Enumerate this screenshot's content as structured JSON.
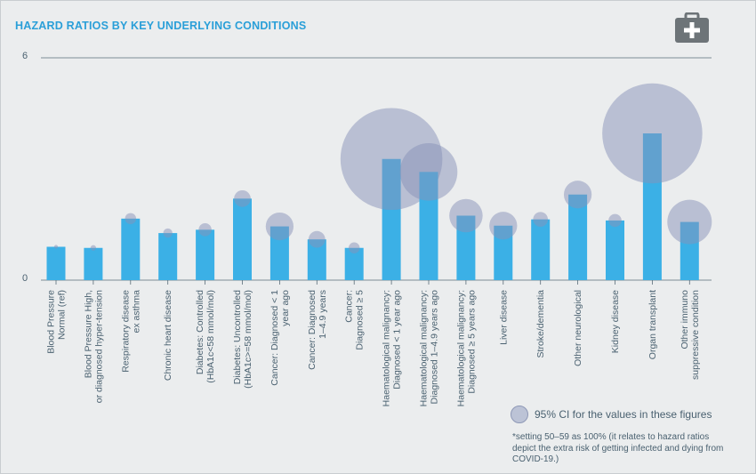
{
  "title": "HAZARD RATIOS BY KEY UNDERLYING CONDITIONS",
  "icon": "medical-kit-icon",
  "colors": {
    "title": "#2a9fd8",
    "bar": "#3bb0e6",
    "ci_bubble": "#8892b8",
    "background": "#ebedee"
  },
  "legend": {
    "label": "95% CI for the values in these figures"
  },
  "footnote": "*setting 50–59 as 100% (it relates to hazard ratios depict the extra risk of getting infected and dying from COVID-19.)",
  "chart_data": {
    "type": "bar",
    "title": "HAZARD RATIOS BY KEY UNDERLYING CONDITIONS",
    "ylim": [
      0,
      6
    ],
    "yticks": [
      0,
      6
    ],
    "categories": [
      [
        "Blood Pressure",
        "Normal (ref)"
      ],
      [
        "Blood Pressure High,",
        "or diagnosed hyper-tension"
      ],
      [
        "Respiratory disease",
        "ex asthma"
      ],
      [
        "Chronic heart disease"
      ],
      [
        "Diabetes: Controlled",
        "(HbA1c<58 mmol/mol)"
      ],
      [
        "Diabetes: Uncontrolled",
        "(HbA1c>=58 mmol/mol)"
      ],
      [
        "Cancer: Diagnosed < 1",
        "year ago"
      ],
      [
        "Cancer: Diagnosed",
        "1–4.9 years"
      ],
      [
        "Cancer:",
        "Diagnosed ≥ 5"
      ],
      [
        "Haematological malignancy:",
        "Diagnosed < 1 year ago"
      ],
      [
        "Haematological malignancy:",
        "Diagnosed 1–4.9 years ago"
      ],
      [
        "Haematological malignancy:",
        "Diagnosed ≥ 5 years ago"
      ],
      [
        "Liver disease"
      ],
      [
        "Stroke/dementia"
      ],
      [
        "Other neurological"
      ],
      [
        "Kidney disease"
      ],
      [
        "Organ transplant"
      ],
      [
        "Other immuno",
        "suppressive condition"
      ]
    ],
    "values": [
      0.9,
      0.87,
      1.66,
      1.27,
      1.36,
      2.2,
      1.45,
      1.1,
      0.87,
      3.27,
      2.92,
      1.74,
      1.47,
      1.64,
      2.31,
      1.61,
      3.96,
      1.57
    ],
    "ci_width": [
      0.1,
      0.15,
      0.3,
      0.25,
      0.35,
      0.45,
      0.75,
      0.45,
      0.3,
      2.75,
      1.55,
      0.9,
      0.75,
      0.4,
      0.75,
      0.35,
      2.7,
      1.2
    ],
    "grid": false
  }
}
